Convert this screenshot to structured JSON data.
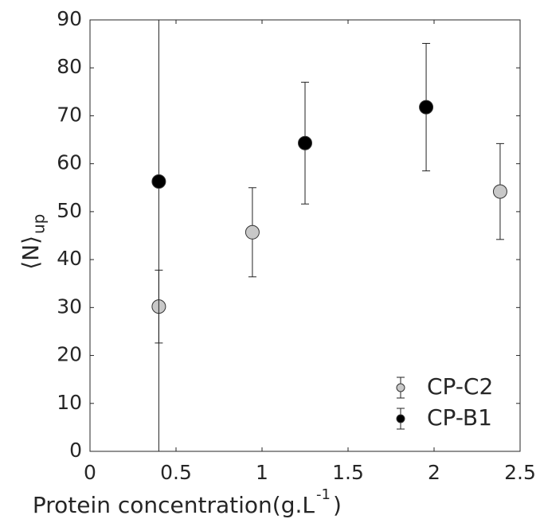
{
  "chart_data": {
    "type": "scatter",
    "xlabel": "Protein concentration(g.L",
    "xlabel_sup": "-1",
    "xlabel_end": ")",
    "ylabel": "⟨N⟩",
    "ylabel_sub": "up",
    "xlim": [
      0,
      2.5
    ],
    "xticks": [
      0,
      0.5,
      1,
      1.5,
      2,
      2.5
    ],
    "ylim": [
      0,
      90
    ],
    "yticks": [
      0,
      10,
      20,
      30,
      40,
      50,
      60,
      70,
      80,
      90
    ],
    "legend": "lower right",
    "series": [
      {
        "name": "CP-C2",
        "color": "#c8c8c8",
        "x": [
          0.4,
          0.944,
          2.384
        ],
        "values": [
          30.2,
          45.7,
          54.2
        ],
        "errors": [
          7.6,
          9.3,
          10.0
        ]
      },
      {
        "name": "CP-B1",
        "color": "#000000",
        "x": [
          0.4,
          1.25,
          1.954
        ],
        "values": [
          56.3,
          64.3,
          71.8
        ],
        "errors": [
          56.3,
          12.7,
          13.3
        ]
      }
    ]
  }
}
